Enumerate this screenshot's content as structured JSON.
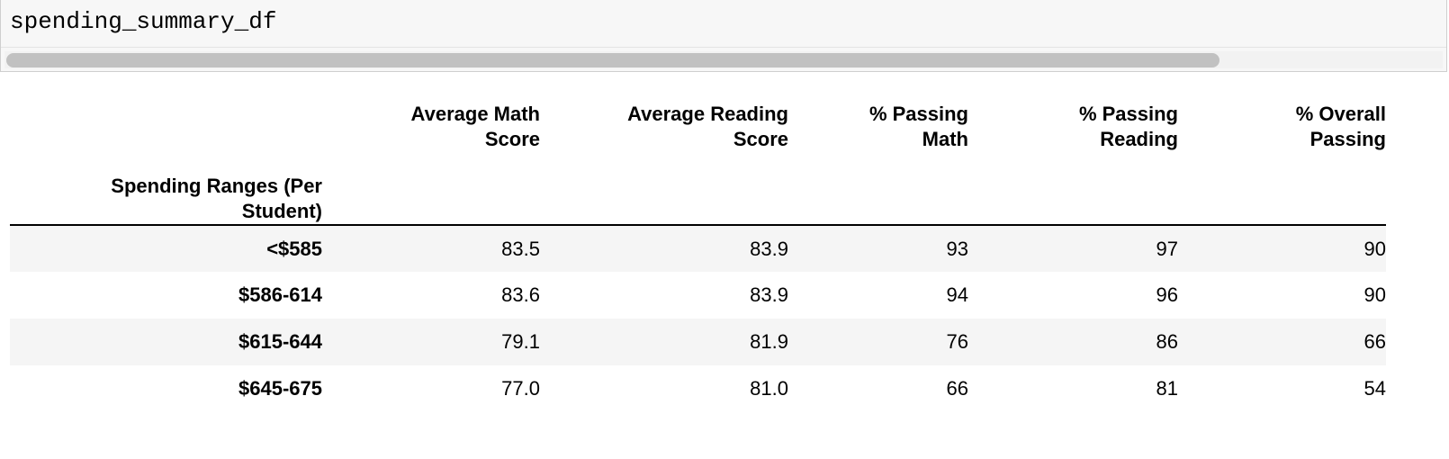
{
  "code_cell": {
    "source": "spending_summary_df"
  },
  "table": {
    "columns": [
      "Average Math Score",
      "Average Reading Score",
      "% Passing Math",
      "% Passing Reading",
      "% Overall Passing"
    ],
    "columns_lines": [
      [
        "Average Math",
        "Score"
      ],
      [
        "Average Reading",
        "Score"
      ],
      [
        "% Passing",
        "Math"
      ],
      [
        "% Passing",
        "Reading"
      ],
      [
        "% Overall",
        "Passing"
      ]
    ],
    "index_name_lines": [
      "Spending Ranges (Per",
      "Student)"
    ],
    "rows": [
      {
        "index": "<$585",
        "values": [
          "83.5",
          "83.9",
          "93",
          "97",
          "90"
        ]
      },
      {
        "index": "$586-614",
        "values": [
          "83.6",
          "83.9",
          "94",
          "96",
          "90"
        ]
      },
      {
        "index": "$615-644",
        "values": [
          "79.1",
          "81.9",
          "76",
          "86",
          "66"
        ]
      },
      {
        "index": "$645-675",
        "values": [
          "77.0",
          "81.0",
          "66",
          "81",
          "54"
        ]
      }
    ]
  }
}
